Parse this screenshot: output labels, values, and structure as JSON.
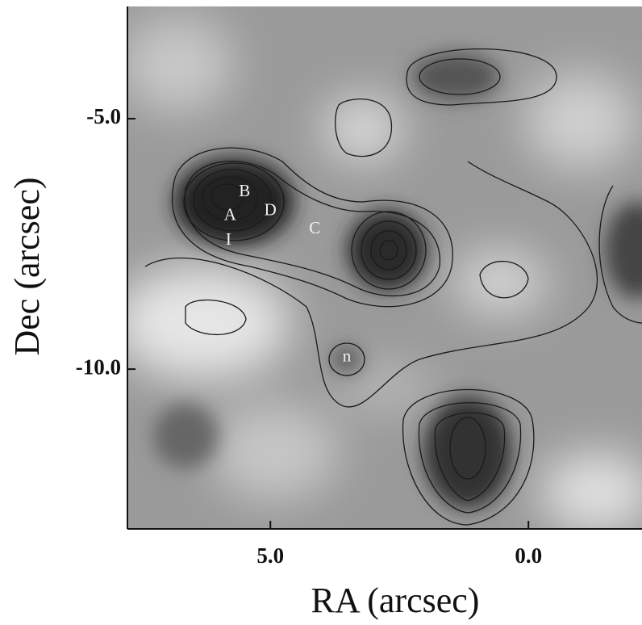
{
  "chart_data": {
    "type": "contour",
    "x_label": "RA (arcsec)",
    "y_label": "Dec (arcsec)",
    "xlim": [
      7.77,
      -2.2
    ],
    "ylim": [
      -13.19,
      -2.76
    ],
    "xticks": [
      {
        "value": 5,
        "label": "5.0"
      },
      {
        "value": 0,
        "label": "0.0"
      }
    ],
    "yticks": [
      {
        "value": -5,
        "label": "-5.0"
      },
      {
        "value": -10,
        "label": "-10.0"
      }
    ],
    "annotations": [
      {
        "text": "B",
        "x": 5.5,
        "y": -6.47
      },
      {
        "text": "A",
        "x": 5.78,
        "y": -6.95
      },
      {
        "text": "D",
        "x": 5.0,
        "y": -6.85
      },
      {
        "text": "C",
        "x": 4.14,
        "y": -7.21
      },
      {
        "text": "I",
        "x": 5.81,
        "y": -7.44
      },
      {
        "text": "n",
        "x": 3.52,
        "y": -9.77
      }
    ]
  }
}
